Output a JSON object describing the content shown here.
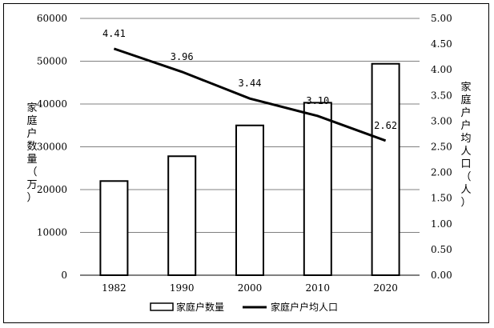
{
  "chart_data": {
    "type": "bar",
    "categories": [
      "1982",
      "1990",
      "2000",
      "2010",
      "2020"
    ],
    "series": [
      {
        "name": "家庭户数量",
        "type": "bar",
        "axis": "left",
        "values": [
          22000,
          27800,
          35000,
          40300,
          49400
        ]
      },
      {
        "name": "家庭户户均人口",
        "type": "line",
        "axis": "right",
        "values": [
          4.41,
          3.96,
          3.44,
          3.1,
          2.62
        ]
      }
    ],
    "data_labels": [
      "4.41",
      "3.96",
      "3.44",
      "3.10",
      "2.62"
    ],
    "ylabel_left": "家庭户数量（万）",
    "ylabel_right": "家庭户户均人口（人）",
    "ylim_left": [
      0,
      60000
    ],
    "ylim_right": [
      0,
      5
    ],
    "yticks_left": [
      "0",
      "10000",
      "20000",
      "30000",
      "40000",
      "50000",
      "60000"
    ],
    "yticks_right": [
      "0.00",
      "0.50",
      "1.00",
      "1.50",
      "2.00",
      "2.50",
      "3.00",
      "3.50",
      "4.00",
      "4.50",
      "5.00"
    ],
    "grid": true,
    "legend_position": "bottom",
    "colors": {
      "bar_fill": "#ffffff",
      "bar_stroke": "#000000",
      "line": "#000000",
      "grid": "#808080"
    }
  }
}
